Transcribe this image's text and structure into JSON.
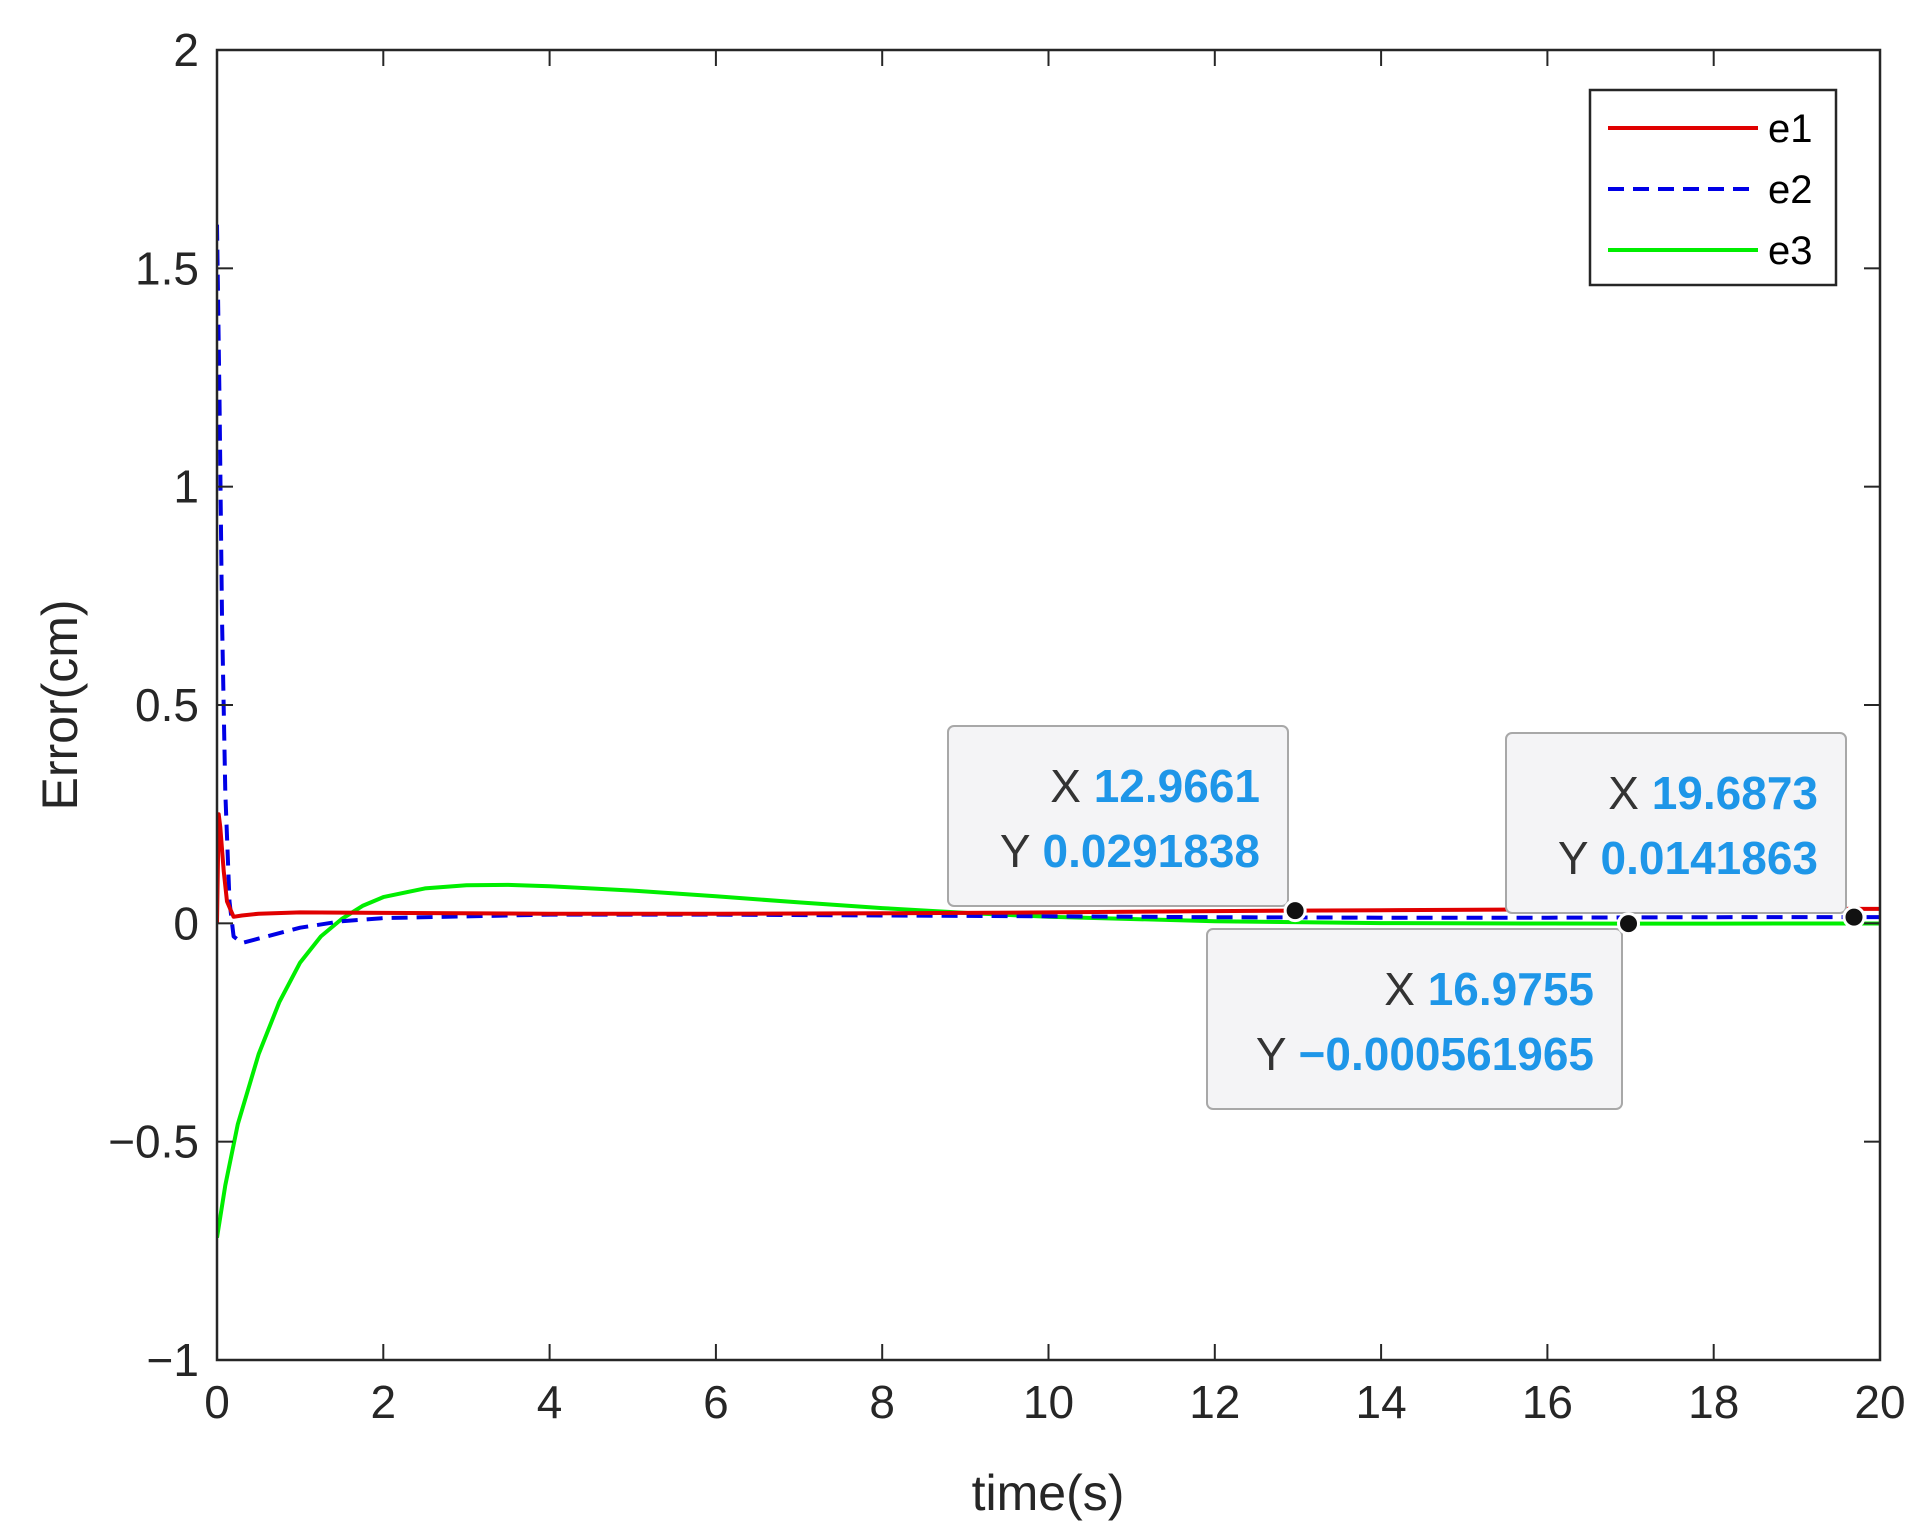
{
  "chart_data": {
    "type": "line",
    "xlabel": "time(s)",
    "ylabel": "Error(cm)",
    "xlim": [
      0,
      20
    ],
    "ylim": [
      -1,
      2
    ],
    "x_ticks": [
      0,
      2,
      4,
      6,
      8,
      10,
      12,
      14,
      16,
      18,
      20
    ],
    "x_tick_labels": [
      "0",
      "2",
      "4",
      "6",
      "8",
      "10",
      "12",
      "14",
      "16",
      "18",
      "20"
    ],
    "y_ticks": [
      -1,
      -0.5,
      0,
      0.5,
      1,
      1.5,
      2
    ],
    "y_tick_labels": [
      "−1",
      "−0.5",
      "0",
      "0.5",
      "1",
      "1.5",
      "2"
    ],
    "grid": false,
    "legend_position": "top-right",
    "series": [
      {
        "name": "e1",
        "color": "#e00000",
        "style": "solid",
        "x": [
          0,
          0.02,
          0.04,
          0.08,
          0.12,
          0.2,
          0.3,
          0.5,
          1,
          2,
          4,
          6,
          8,
          10,
          12,
          12.9661,
          14,
          16,
          18,
          20
        ],
        "y": [
          0,
          0.25,
          0.22,
          0.12,
          0.05,
          0.015,
          0.018,
          0.022,
          0.025,
          0.024,
          0.022,
          0.022,
          0.023,
          0.025,
          0.028,
          0.0291838,
          0.03,
          0.032,
          0.033,
          0.033
        ]
      },
      {
        "name": "e2",
        "color": "#0000e6",
        "style": "dashed",
        "x": [
          0,
          0.03,
          0.06,
          0.1,
          0.15,
          0.2,
          0.3,
          0.5,
          1,
          1.5,
          2,
          4,
          6,
          8,
          10,
          12,
          14,
          16,
          16.9755,
          18,
          19.6873,
          20
        ],
        "y": [
          1.6,
          1.2,
          0.7,
          0.3,
          0.05,
          -0.03,
          -0.045,
          -0.035,
          -0.01,
          0.005,
          0.012,
          0.02,
          0.02,
          0.018,
          0.016,
          0.014,
          0.013,
          0.013,
          0.0135,
          0.014,
          0.0141863,
          0.0142
        ]
      },
      {
        "name": "e3",
        "color": "#00ee00",
        "style": "solid",
        "x": [
          0,
          0.1,
          0.25,
          0.5,
          0.75,
          1,
          1.25,
          1.5,
          1.75,
          2,
          2.5,
          3,
          3.5,
          4,
          5,
          6,
          7,
          8,
          9,
          10,
          12,
          14,
          16,
          16.9755,
          18,
          20
        ],
        "y": [
          -0.72,
          -0.6,
          -0.46,
          -0.3,
          -0.18,
          -0.09,
          -0.03,
          0.01,
          0.04,
          0.06,
          0.08,
          0.087,
          0.088,
          0.085,
          0.075,
          0.062,
          0.048,
          0.035,
          0.024,
          0.015,
          0.005,
          0.0005,
          -0.0004,
          -0.000561965,
          -0.0005,
          -0.0003
        ]
      }
    ],
    "datatips": [
      {
        "x_label": "X",
        "x_value": "12.9661",
        "y_label": "Y",
        "y_value": "0.0291838",
        "x": 12.9661,
        "y": 0.0291838
      },
      {
        "x_label": "X",
        "x_value": "16.9755",
        "y_label": "Y",
        "y_value": "−0.000561965",
        "x": 16.9755,
        "y": -0.000561965
      },
      {
        "x_label": "X",
        "x_value": "19.6873",
        "y_label": "Y",
        "y_value": "0.0141863",
        "x": 19.6873,
        "y": 0.0141863
      }
    ]
  }
}
